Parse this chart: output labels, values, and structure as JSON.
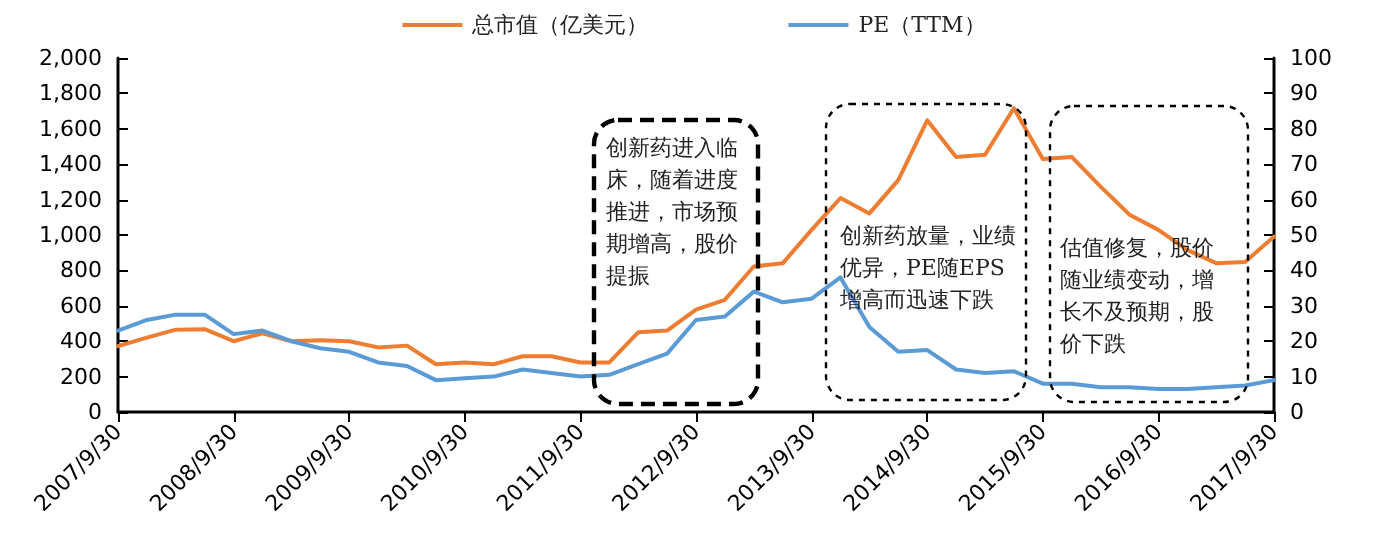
{
  "chart_data": {
    "type": "line",
    "categories": [
      "2007/9/30",
      null,
      null,
      null,
      "2008/9/30",
      null,
      null,
      null,
      "2009/9/30",
      null,
      null,
      null,
      "2010/9/30",
      null,
      null,
      null,
      "2011/9/30",
      null,
      null,
      null,
      "2012/9/30",
      null,
      null,
      null,
      "2013/9/30",
      null,
      null,
      null,
      "2014/9/30",
      null,
      null,
      null,
      "2015/9/30",
      null,
      null,
      null,
      "2016/9/30",
      null,
      null,
      null,
      "2017/9/30"
    ],
    "series": [
      {
        "name": "总市值（亿美元）",
        "color": "#ed7d31",
        "values": [
          372,
          420,
          465,
          468,
          400,
          445,
          400,
          405,
          400,
          365,
          375,
          270,
          280,
          270,
          315,
          315,
          280,
          280,
          450,
          460,
          578,
          634,
          822,
          840,
          1029,
          1209,
          1122,
          1310,
          1648,
          1441,
          1453,
          1716,
          1430,
          1441,
          1273,
          1115,
          1029,
          916,
          841,
          848,
          991
        ]
      },
      {
        "name": "PE（TTM）",
        "color": "#5b9bd5",
        "axis": "y2",
        "values": [
          23,
          26,
          27.5,
          27.5,
          22,
          23,
          20,
          18,
          17,
          14,
          13,
          9,
          9.5,
          10,
          12,
          11,
          10,
          10.5,
          13.5,
          16.5,
          26,
          27,
          34,
          31,
          32,
          38,
          24,
          17,
          17.5,
          12,
          11,
          11.5,
          8,
          8,
          7,
          7,
          6.5,
          6.5,
          7,
          7.5,
          9
        ]
      }
    ],
    "ylim": [
      0,
      2000
    ],
    "yticks": [
      0,
      200,
      400,
      600,
      800,
      {
        "value": 1000,
        "label": "1,000"
      },
      {
        "value": 1200,
        "label": "1,200"
      },
      {
        "value": 1400,
        "label": "1,400"
      },
      {
        "value": 1600,
        "label": "1,600"
      },
      {
        "value": 1800,
        "label": "1,800"
      },
      {
        "value": 2000,
        "label": "2,000"
      }
    ],
    "y2lim": [
      0,
      100
    ],
    "y2ticks": [
      0,
      10,
      20,
      30,
      40,
      50,
      60,
      70,
      80,
      90,
      100
    ],
    "annotations": [
      "创新药进入临床，随着进度推进，市场预期增高，股价提振",
      "创新药放量，业绩优异，PE随EPS增高而迅速下跌",
      "估值修复，股价随业绩变动，增长不及预期，股价下跌"
    ],
    "legend": "top",
    "grid": false,
    "marker": "none",
    "line_style": "solid"
  }
}
